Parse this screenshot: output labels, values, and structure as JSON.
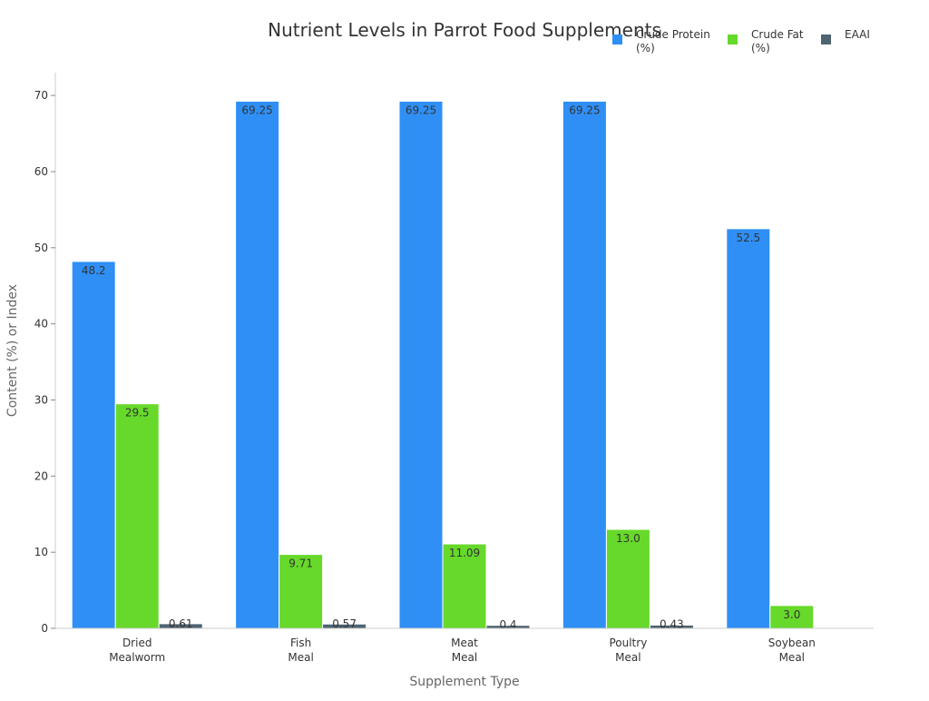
{
  "chart_data": {
    "type": "bar",
    "title": "Nutrient Levels in Parrot Food Supplements",
    "xlabel": "Supplement Type",
    "ylabel": "Content (%) or Index",
    "ylim": [
      0,
      73
    ],
    "yticks": [
      0,
      10,
      20,
      30,
      40,
      50,
      60,
      70
    ],
    "grid": false,
    "legend_position": "top-right",
    "categories": [
      [
        "Dried",
        "Mealworm"
      ],
      [
        "Fish",
        "Meal"
      ],
      [
        "Meat",
        "Meal"
      ],
      [
        "Poultry",
        "Meal"
      ],
      [
        "Soybean",
        "Meal"
      ]
    ],
    "series": [
      {
        "name": [
          "Crude Protein",
          "(%)"
        ],
        "color": "#2f8ff5",
        "values": [
          48.2,
          69.25,
          69.25,
          69.25,
          52.5
        ],
        "labels": [
          "48.2",
          "69.25",
          "69.25",
          "69.25",
          "52.5"
        ]
      },
      {
        "name": [
          "Crude Fat",
          "(%)"
        ],
        "color": "#66d92a",
        "values": [
          29.5,
          9.71,
          11.09,
          13.0,
          3.0
        ],
        "labels": [
          "29.5",
          "9.71",
          "11.09",
          "13.0",
          "3.0"
        ]
      },
      {
        "name": [
          "EAAI"
        ],
        "color": "#4f6472",
        "values": [
          0.61,
          0.57,
          0.4,
          0.43,
          null
        ],
        "labels": [
          "0.61",
          "0.57",
          "0.4",
          "0.43",
          ""
        ]
      }
    ]
  }
}
